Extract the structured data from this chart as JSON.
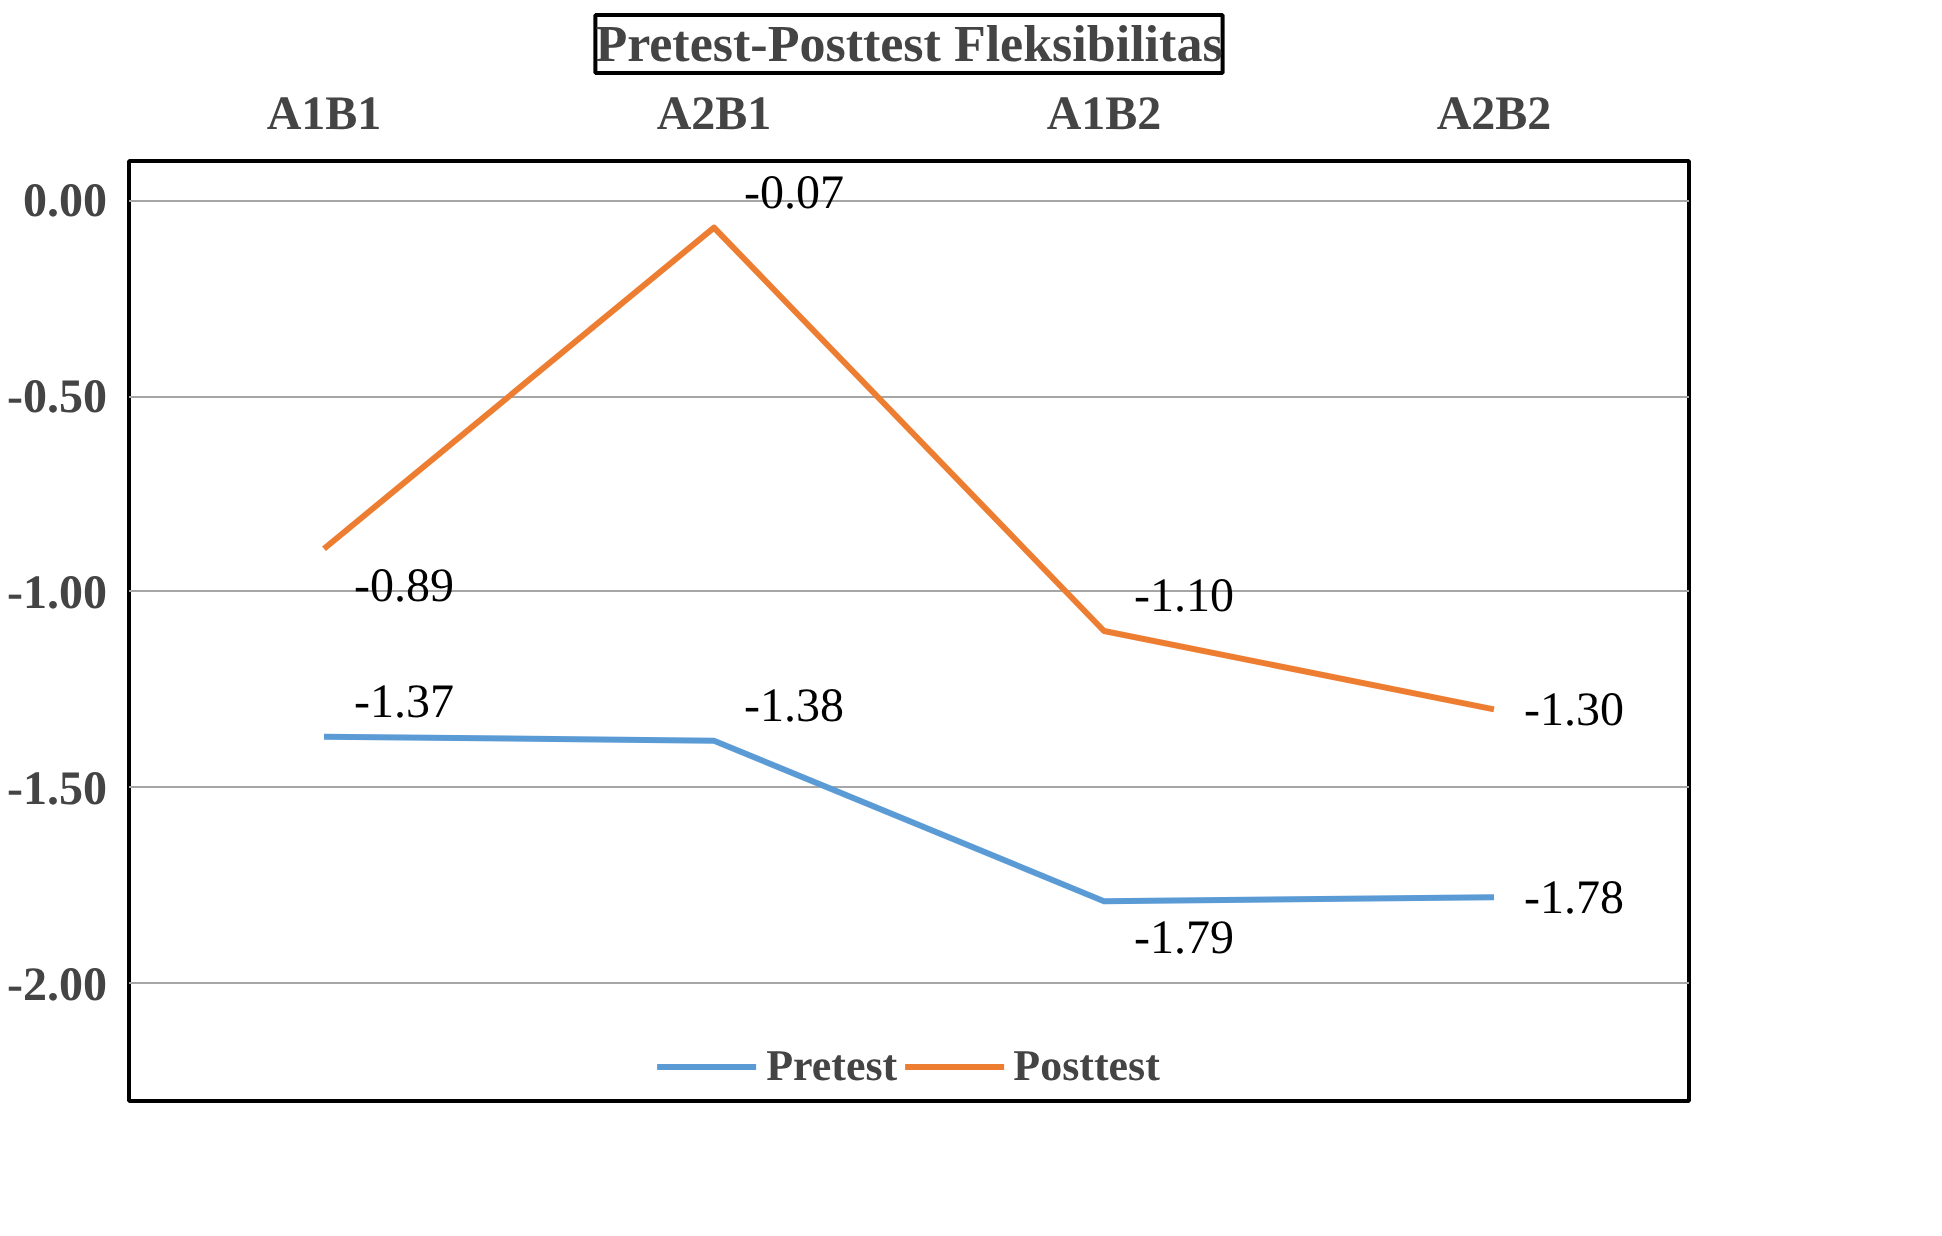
{
  "chart_data": {
    "type": "line",
    "title": "Pretest-Posttest Fleksibilitas",
    "categories": [
      "A1B1",
      "A2B1",
      "A1B2",
      "A2B2"
    ],
    "series": [
      {
        "name": "Pretest",
        "color": "#5b9bd5",
        "values": [
          -1.37,
          -1.38,
          -1.79,
          -1.78
        ],
        "value_labels": [
          "-1.37",
          "-1.38",
          "-1.79",
          "-1.78"
        ]
      },
      {
        "name": "Posttest",
        "color": "#ed7d31",
        "values": [
          -0.89,
          -0.07,
          -1.1,
          -1.3
        ],
        "value_labels": [
          "-0.89",
          "-0.07",
          "-1.10",
          "-1.30"
        ]
      }
    ],
    "ylim": [
      -2.3,
      0.1
    ],
    "yticks": [
      {
        "value": 0,
        "label": "0.00"
      },
      {
        "value": -0.5,
        "label": "-0.50"
      },
      {
        "value": -1,
        "label": "-1.00"
      },
      {
        "value": -1.5,
        "label": "-1.50"
      },
      {
        "value": -2,
        "label": "-2.00"
      }
    ],
    "grid": "y",
    "legend": "bottom",
    "marker": "none",
    "line_style": "solid"
  }
}
